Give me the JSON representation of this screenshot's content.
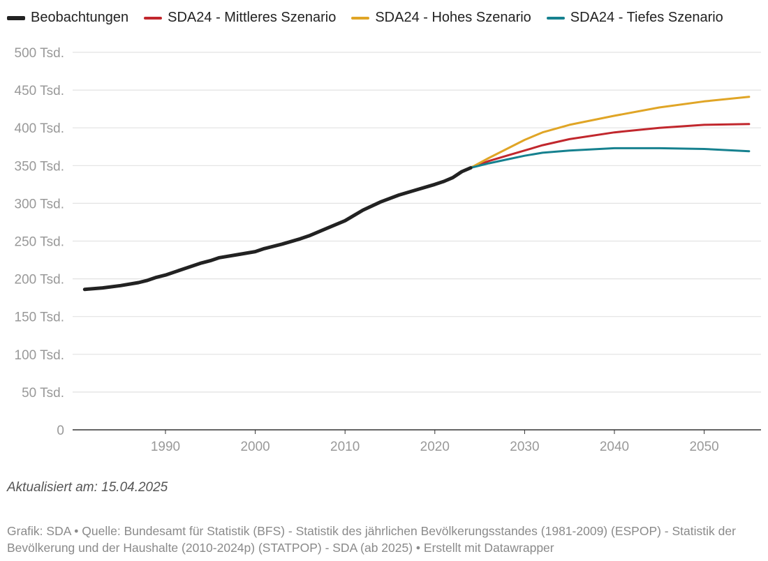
{
  "chart_data": {
    "type": "line",
    "title": "",
    "xlabel": "",
    "ylabel": "",
    "xlim": [
      1981,
      2055
    ],
    "ylim": [
      0,
      500
    ],
    "grid": true,
    "legend_position": "top",
    "y_ticks": [
      0,
      50,
      100,
      150,
      200,
      250,
      300,
      350,
      400,
      450,
      500
    ],
    "y_tick_labels": [
      "0",
      "50 Tsd.",
      "100 Tsd.",
      "150 Tsd.",
      "200 Tsd.",
      "250 Tsd.",
      "300 Tsd.",
      "350 Tsd.",
      "400 Tsd.",
      "450 Tsd.",
      "500 Tsd."
    ],
    "x_ticks": [
      1990,
      2000,
      2010,
      2020,
      2030,
      2040,
      2050
    ],
    "x_tick_labels": [
      "1990",
      "2000",
      "2010",
      "2020",
      "2030",
      "2040",
      "2050"
    ],
    "y_unit": "Tsd.",
    "series": [
      {
        "name": "Beobachtungen",
        "color": "#222222",
        "x": [
          1981,
          1983,
          1985,
          1987,
          1988,
          1989,
          1990,
          1992,
          1994,
          1995,
          1996,
          1998,
          2000,
          2001,
          2003,
          2005,
          2006,
          2008,
          2010,
          2011,
          2012,
          2014,
          2016,
          2018,
          2020,
          2021,
          2022,
          2023,
          2024
        ],
        "y": [
          186,
          188,
          191,
          195,
          198,
          202,
          205,
          213,
          221,
          224,
          228,
          232,
          236,
          240,
          246,
          253,
          257,
          267,
          277,
          284,
          291,
          302,
          311,
          318,
          325,
          329,
          334,
          342,
          347
        ]
      },
      {
        "name": "SDA24 - Mittleres Szenario",
        "color": "#c1272d",
        "x": [
          2024,
          2026,
          2028,
          2030,
          2032,
          2035,
          2040,
          2045,
          2050,
          2055
        ],
        "y": [
          347,
          356,
          363,
          370,
          377,
          385,
          394,
          400,
          404,
          405
        ]
      },
      {
        "name": "SDA24 - Hohes Szenario",
        "color": "#e0a526",
        "x": [
          2024,
          2026,
          2028,
          2030,
          2032,
          2035,
          2040,
          2045,
          2050,
          2055
        ],
        "y": [
          347,
          360,
          372,
          384,
          394,
          404,
          416,
          427,
          435,
          441
        ]
      },
      {
        "name": "SDA24 - Tiefes Szenario",
        "color": "#16818f",
        "x": [
          2024,
          2026,
          2028,
          2030,
          2032,
          2035,
          2040,
          2045,
          2050,
          2055
        ],
        "y": [
          347,
          353,
          358,
          363,
          367,
          370,
          373,
          373,
          372,
          369
        ]
      }
    ]
  },
  "updated": "Aktualisiert am: 15.04.2025",
  "source": "Grafik: SDA • Quelle: Bundesamt für Statistik (BFS) - Statistik des jährlichen Bevölkerungsstandes (1981-2009) (ESPOP) - Statistik der Bevölkerung und der Haushalte (2010-2024p) (STATPOP) - SDA (ab 2025) • Erstellt mit Datawrapper"
}
